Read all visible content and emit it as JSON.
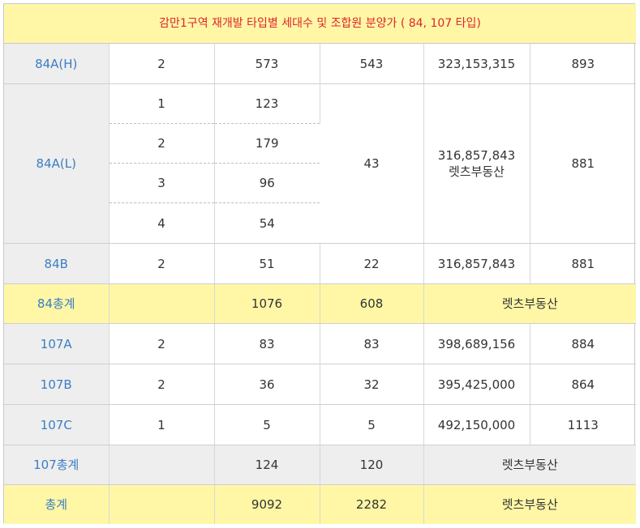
{
  "title": "감만1구역 재개발 타입별 세대수 및 조합원 분양가 ( 84, 107 타입)",
  "rows": {
    "h84a_h": {
      "type": "84A(H)",
      "col2": "2",
      "col3": "573",
      "col4": "543",
      "col5": "323,153,315",
      "col6": "893"
    },
    "h84a_l": {
      "type": "84A(L)",
      "sub": [
        {
          "col2": "1",
          "col3": "123"
        },
        {
          "col2": "2",
          "col3": "179"
        },
        {
          "col2": "3",
          "col3": "96"
        },
        {
          "col2": "4",
          "col3": "54"
        }
      ],
      "col4": "43",
      "col5": "316,857,843",
      "col5_note": "렛츠부동산",
      "col6": "881"
    },
    "h84b": {
      "type": "84B",
      "col2": "2",
      "col3": "51",
      "col4": "22",
      "col5": "316,857,843",
      "col6": "881"
    },
    "t84": {
      "type": "84총계",
      "col2": "",
      "col3": "1076",
      "col4": "608",
      "col5": "렛츠부동산"
    },
    "h107a": {
      "type": "107A",
      "col2": "2",
      "col3": "83",
      "col4": "83",
      "col5": "398,689,156",
      "col6": "884"
    },
    "h107b": {
      "type": "107B",
      "col2": "2",
      "col3": "36",
      "col4": "32",
      "col5": "395,425,000",
      "col6": "864"
    },
    "h107c": {
      "type": "107C",
      "col2": "1",
      "col3": "5",
      "col4": "5",
      "col5": "492,150,000",
      "col6": "1113"
    },
    "t107": {
      "type": "107총계",
      "col2": "",
      "col3": "124",
      "col4": "120",
      "col5": "렛츠부동산"
    },
    "total": {
      "type": "총계",
      "col2": "",
      "col3": "9092",
      "col4": "2282",
      "col5": "렛츠부동산"
    }
  }
}
